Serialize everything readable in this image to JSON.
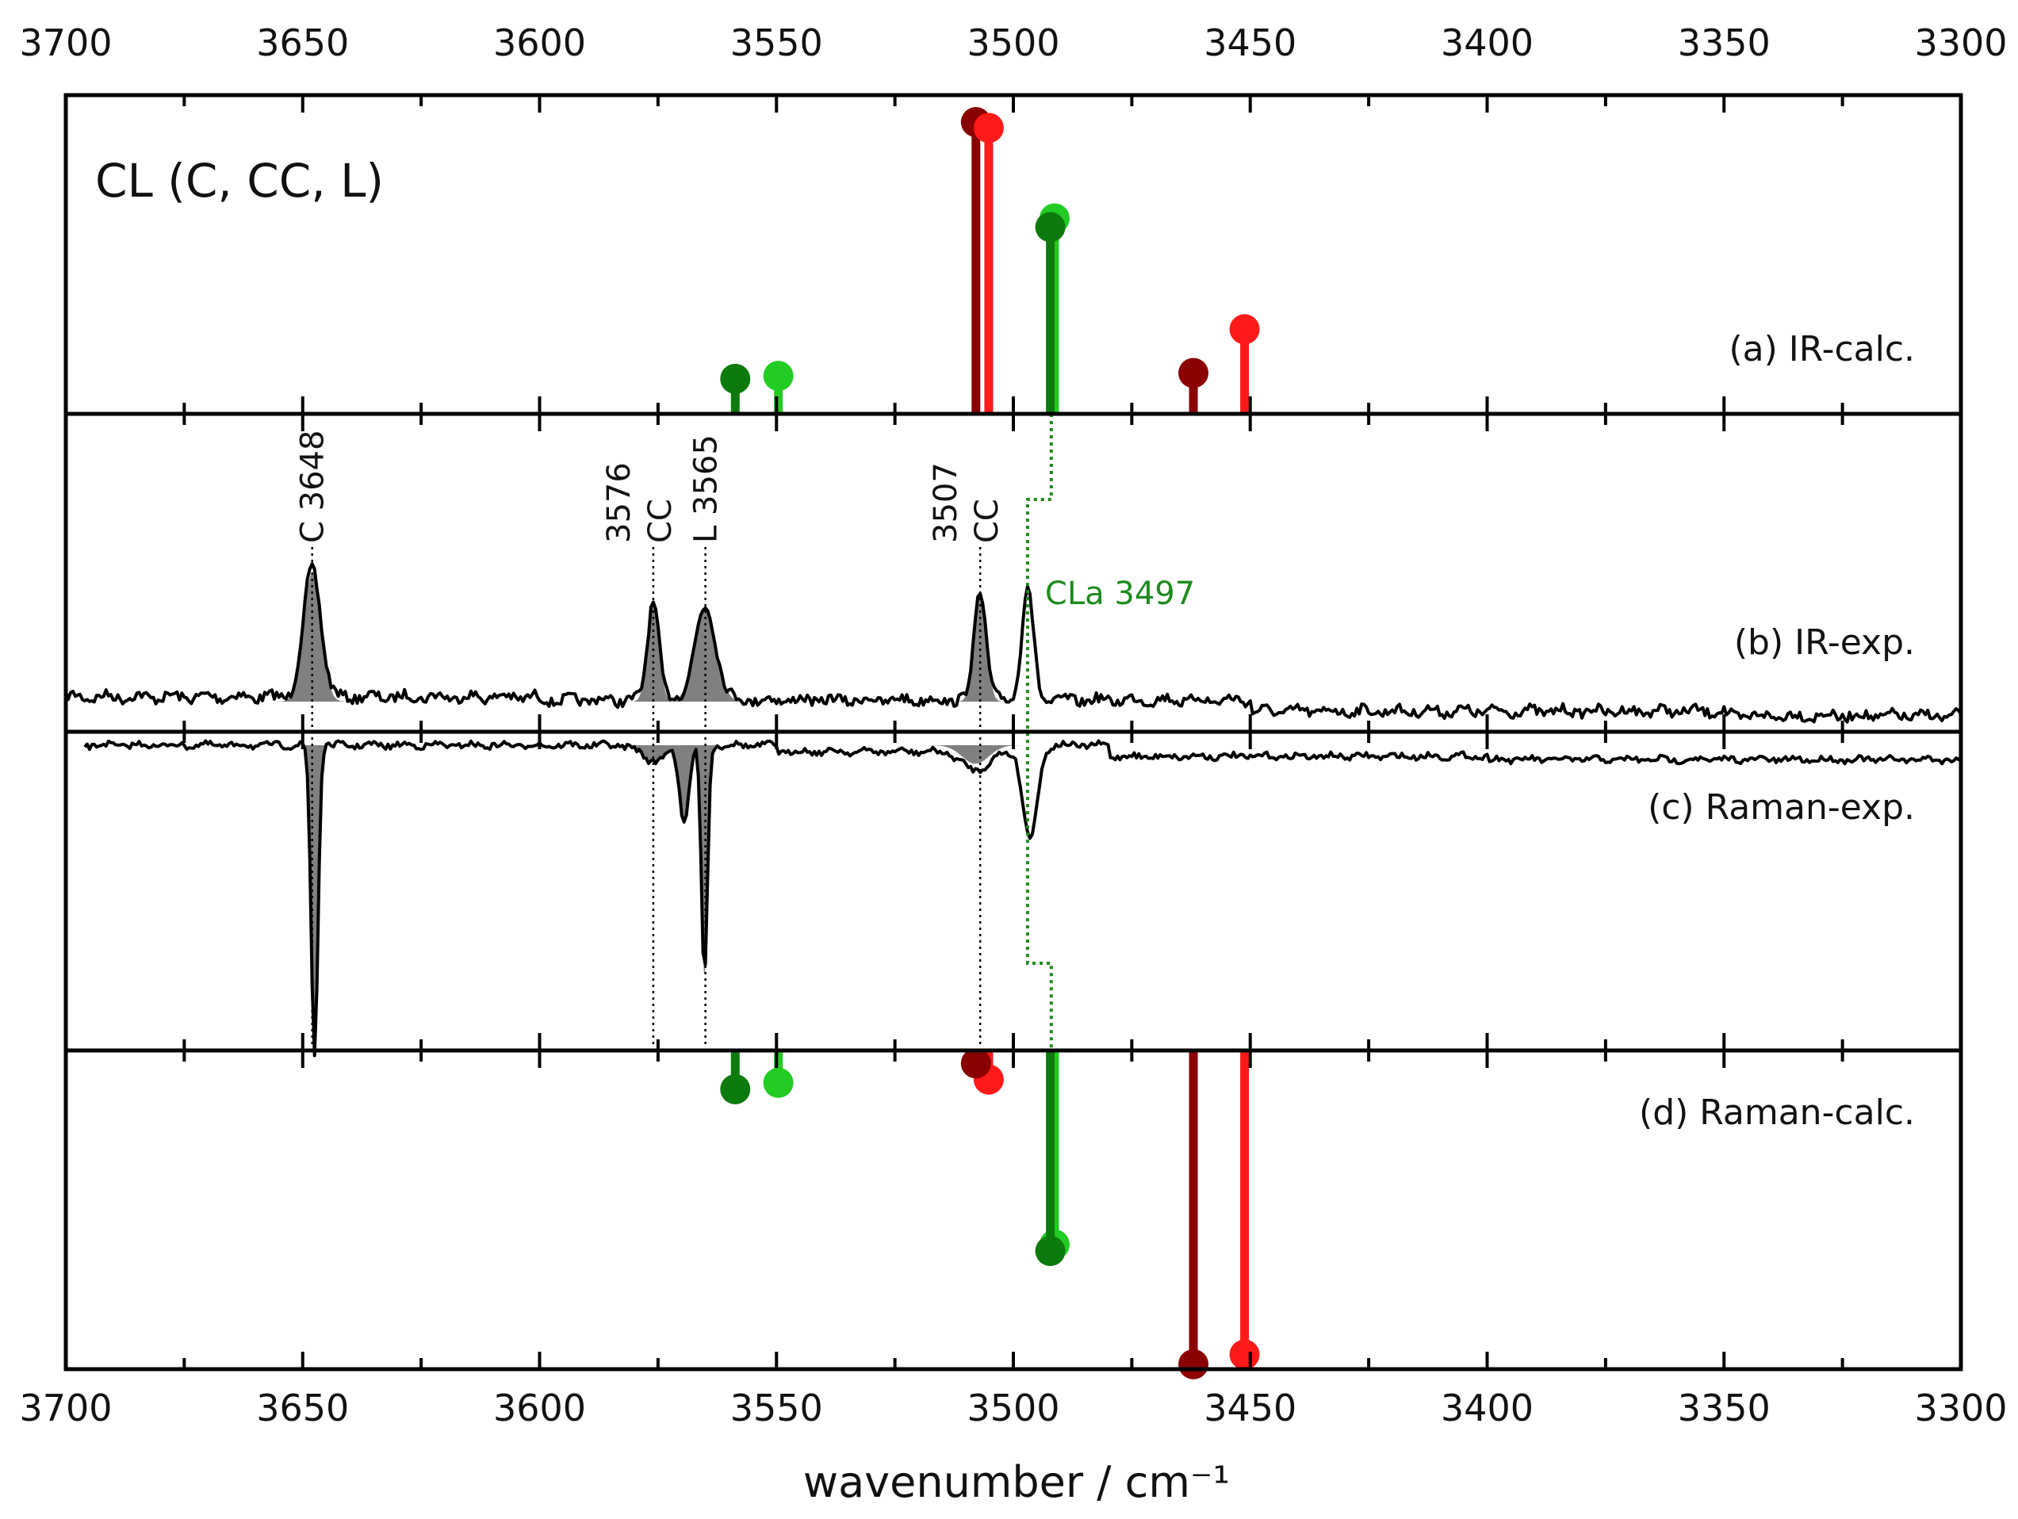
{
  "chart_data": {
    "type": "stick-spectrum",
    "title": "CL (C, CC, L)",
    "xlabel": "wavenumber / cm⁻¹",
    "xlim": [
      3700,
      3300
    ],
    "x_ticks": [
      3700,
      3650,
      3600,
      3550,
      3500,
      3450,
      3400,
      3350,
      3300
    ],
    "grid": false,
    "colors": {
      "dark_green": "#0d7a0d",
      "light_green": "#22cc22",
      "dark_red": "#8b0000",
      "red": "#ff1a1a",
      "dotted_green": "#1e8a1e",
      "trace": "#000000",
      "fill": "#808080"
    },
    "panels": [
      {
        "id": "a",
        "label": "(a) IR-calc.",
        "kind": "sticks-up",
        "sticks": [
          {
            "x": 3558.7,
            "intensity": 0.12,
            "color": "dark_green"
          },
          {
            "x": 3549.6,
            "intensity": 0.13,
            "color": "light_green"
          },
          {
            "x": 3507.9,
            "intensity": 1.0,
            "color": "dark_red"
          },
          {
            "x": 3505.2,
            "intensity": 0.98,
            "color": "red"
          },
          {
            "x": 3491.3,
            "intensity": 0.67,
            "color": "light_green"
          },
          {
            "x": 3492.2,
            "intensity": 0.64,
            "color": "dark_green"
          },
          {
            "x": 3462.0,
            "intensity": 0.14,
            "color": "dark_red"
          },
          {
            "x": 3451.2,
            "intensity": 0.29,
            "color": "red"
          }
        ]
      },
      {
        "id": "b",
        "label": "(b) IR-exp.",
        "kind": "trace-up",
        "peaks": [
          {
            "x": 3648,
            "height": 0.45,
            "width": 2.6,
            "filled": true
          },
          {
            "x": 3576,
            "height": 0.35,
            "width": 1.7,
            "filled": true
          },
          {
            "x": 3565,
            "height": 0.32,
            "width": 3.2,
            "filled": true
          },
          {
            "x": 3507,
            "height": 0.38,
            "width": 1.8,
            "filled": true
          },
          {
            "x": 3497,
            "height": 0.4,
            "width": 1.7,
            "filled": false
          }
        ]
      },
      {
        "id": "c",
        "label": "(c) Raman-exp.",
        "kind": "trace-down",
        "peaks": [
          {
            "x": 3647.5,
            "height": 1.0,
            "width": 1.0,
            "filled": true
          },
          {
            "x": 3565.2,
            "height": 0.75,
            "width": 0.9,
            "filled": true
          },
          {
            "x": 3569.5,
            "height": 0.25,
            "width": 1.4,
            "filled": true
          },
          {
            "x": 3576,
            "height": 0.05,
            "width": 3.5,
            "filled": true
          },
          {
            "x": 3508,
            "height": 0.06,
            "width": 4.0,
            "filled": true
          },
          {
            "x": 3496.5,
            "height": 0.3,
            "width": 2.2,
            "filled": false
          }
        ]
      },
      {
        "id": "d",
        "label": "(d) Raman-calc.",
        "kind": "sticks-down",
        "sticks": [
          {
            "x": 3558.7,
            "intensity": 0.12,
            "color": "dark_green"
          },
          {
            "x": 3549.6,
            "intensity": 0.1,
            "color": "light_green"
          },
          {
            "x": 3505.2,
            "intensity": 0.09,
            "color": "red"
          },
          {
            "x": 3507.9,
            "intensity": 0.04,
            "color": "dark_red"
          },
          {
            "x": 3491.3,
            "intensity": 0.6,
            "color": "light_green"
          },
          {
            "x": 3492.2,
            "intensity": 0.62,
            "color": "dark_green"
          },
          {
            "x": 3462.0,
            "intensity": 0.97,
            "color": "dark_red"
          },
          {
            "x": 3451.2,
            "intensity": 0.94,
            "color": "red"
          }
        ]
      }
    ],
    "annotations": [
      {
        "x": 3648,
        "text": "C  3648",
        "rotated": true
      },
      {
        "x": 3576,
        "text": "3576\nCC",
        "rotated": true
      },
      {
        "x": 3565,
        "text": "L  3565",
        "rotated": true
      },
      {
        "x": 3507,
        "text": "3507\nCC",
        "rotated": true
      },
      {
        "x": 3497,
        "text": "CLa  3497",
        "rotated": false,
        "color": "dotted_green"
      }
    ]
  }
}
